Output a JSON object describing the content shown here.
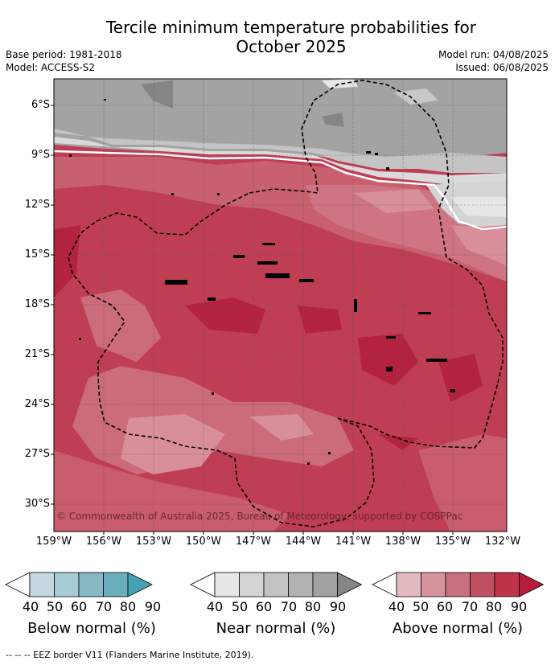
{
  "title": {
    "line1": "Tercile minimum temperature probabilities for",
    "line2": "October 2025"
  },
  "meta": {
    "base_period": "Base period: 1981-2018",
    "model": "Model: ACCESS-S2",
    "model_run": "Model run: 04/08/2025",
    "issued": "Issued: 06/08/2025"
  },
  "map": {
    "lat_labels": [
      "6°S",
      "9°S",
      "12°S",
      "15°S",
      "18°S",
      "21°S",
      "24°S",
      "27°S",
      "30°S"
    ],
    "lon_labels": [
      "159°W",
      "156°W",
      "153°W",
      "150°W",
      "147°W",
      "144°W",
      "141°W",
      "138°W",
      "135°W",
      "132°W"
    ],
    "copyright": "© Commonwealth of Australia 2025, Bureau of Meteorology, supported by COSPPac"
  },
  "legend": {
    "ticks": [
      "40",
      "50",
      "60",
      "70",
      "80",
      "90"
    ],
    "below": {
      "title": "Below normal (%)",
      "colors": [
        "#ffffff",
        "#c3d8df",
        "#a7cbd4",
        "#89b8c5",
        "#6aaebe",
        "#45a1b3"
      ]
    },
    "near": {
      "title": "Near normal (%)",
      "colors": [
        "#ffffff",
        "#e6e6e6",
        "#d4d4d4",
        "#c3c3c3",
        "#b3b3b3",
        "#a2a2a2",
        "#858585"
      ]
    },
    "above": {
      "title": "Above normal (%)",
      "colors": [
        "#ffffff",
        "#e3b9c0",
        "#d5949e",
        "#c8717e",
        "#bf5160",
        "#bd3449",
        "#b71c3c"
      ]
    }
  },
  "footnote": "-- -- -- EEZ border V11 (Flanders Marine Institute, 2019)."
}
